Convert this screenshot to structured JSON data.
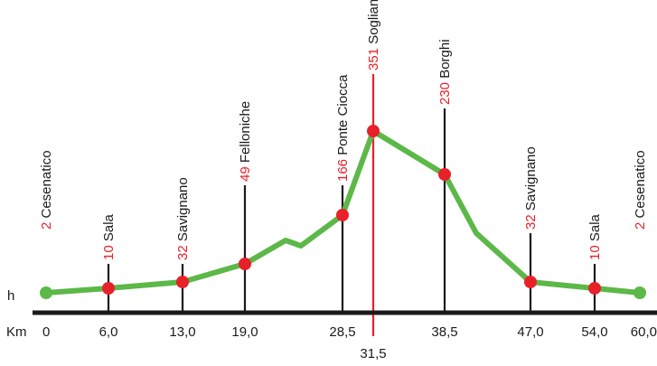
{
  "chart_data": {
    "type": "line",
    "ylabel": "h",
    "xlabel": "Km",
    "x_ticks": [
      "0",
      "6,0",
      "13,0",
      "19,0",
      "28,5",
      "31,5",
      "38,5",
      "47,0",
      "54,0",
      "60,0"
    ],
    "peak_km": "31,5",
    "waypoints": [
      {
        "km": 0,
        "km_label": "0",
        "altitude": "2",
        "name": "Cesenatico",
        "color": "green"
      },
      {
        "km": 6.0,
        "km_label": "6,0",
        "altitude": "10",
        "name": "Sala",
        "color": "red"
      },
      {
        "km": 13.0,
        "km_label": "13,0",
        "altitude": "32",
        "name": "Savignano",
        "color": "red"
      },
      {
        "km": 19.0,
        "km_label": "19,0",
        "altitude": "49",
        "name": "Felloniche",
        "color": "red"
      },
      {
        "km": 28.5,
        "km_label": "28,5",
        "altitude": "166",
        "name": "Ponte Ciocca",
        "color": "red"
      },
      {
        "km": 31.5,
        "km_label": "31,5",
        "altitude": "351",
        "name": "Sogliano",
        "color": "red"
      },
      {
        "km": 38.5,
        "km_label": "38,5",
        "altitude": "230",
        "name": "Borghi",
        "color": "red"
      },
      {
        "km": 47.0,
        "km_label": "47,0",
        "altitude": "32",
        "name": "Savignano",
        "color": "red"
      },
      {
        "km": 54.0,
        "km_label": "54,0",
        "altitude": "10",
        "name": "Sala",
        "color": "red"
      },
      {
        "km": 60.0,
        "km_label": "60,0",
        "altitude": "2",
        "name": "Cesenatico",
        "color": "green"
      }
    ],
    "profile": [
      {
        "km": 0,
        "h": 2
      },
      {
        "km": 6.0,
        "h": 10
      },
      {
        "km": 13.0,
        "h": 32
      },
      {
        "km": 19.0,
        "h": 49
      },
      {
        "km": 23.0,
        "h": 105
      },
      {
        "km": 24.5,
        "h": 98
      },
      {
        "km": 28.5,
        "h": 166
      },
      {
        "km": 31.5,
        "h": 351
      },
      {
        "km": 38.5,
        "h": 230
      },
      {
        "km": 41.5,
        "h": 120
      },
      {
        "km": 47.0,
        "h": 32
      },
      {
        "km": 54.0,
        "h": 10
      },
      {
        "km": 60.0,
        "h": 2
      }
    ],
    "colors": {
      "profile": "#5cb848",
      "marker_red": "#e8202a",
      "marker_green": "#5cb848",
      "axis": "#1a1a1a",
      "peak_line": "#e8202a",
      "altitude_text": "#e8202a"
    }
  }
}
